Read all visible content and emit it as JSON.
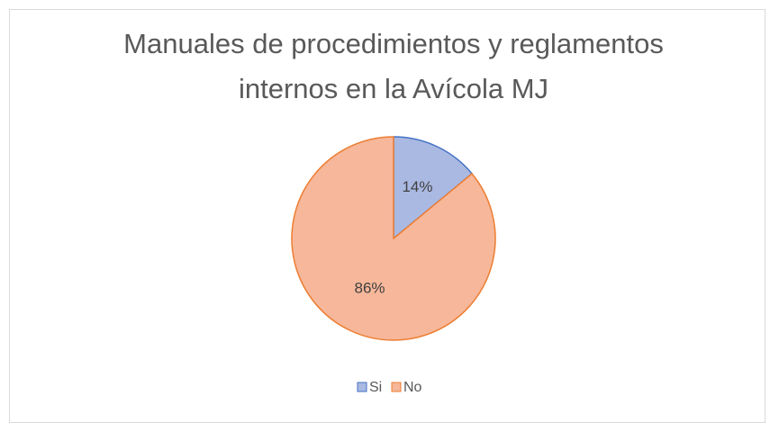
{
  "chart_data": {
    "type": "pie",
    "title": "Manuales de procedimientos y reglamentos internos en la Avícola MJ",
    "categories": [
      "Si",
      "No"
    ],
    "values": [
      14,
      86
    ],
    "value_labels": [
      "14%",
      "86%"
    ],
    "colors": [
      "#aab9e2",
      "#f6b79a"
    ],
    "edge_colors": [
      "#4472c4",
      "#ed7d31"
    ]
  }
}
